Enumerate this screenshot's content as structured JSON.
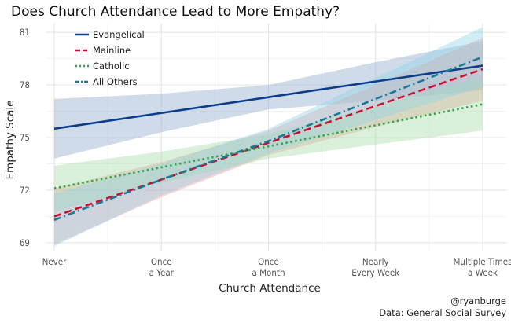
{
  "chart_data": {
    "type": "line",
    "title": "Does Church Attendance Lead to More Empathy?",
    "xlabel": "Church Attendance",
    "ylabel": "Empathy Scale",
    "categories": [
      [
        "Never"
      ],
      [
        "Once",
        "a Year"
      ],
      [
        "Once",
        "a Month"
      ],
      [
        "Nearly",
        "Every Week"
      ],
      [
        "Multiple Times",
        "a Week"
      ]
    ],
    "x": [
      0,
      1,
      2,
      3,
      4
    ],
    "ylim": [
      68.5,
      81.5
    ],
    "yticks": [
      69,
      72,
      75,
      78,
      81
    ],
    "grid": true,
    "legend_position": "top-left",
    "series": [
      {
        "name": "Evangelical",
        "color": "#0a3d8a",
        "dash": "solid",
        "values": [
          75.5,
          76.4,
          77.3,
          78.2,
          79.1
        ],
        "ci_low": [
          73.8,
          75.3,
          76.6,
          77.1,
          77.7
        ],
        "ci_high": [
          77.2,
          77.5,
          78.0,
          79.3,
          80.5
        ]
      },
      {
        "name": "Mainline",
        "color": "#c8102e",
        "dash": "longdash",
        "values": [
          70.5,
          72.6,
          74.7,
          76.8,
          78.9
        ],
        "ci_low": [
          68.9,
          71.6,
          74.0,
          75.6,
          77.1
        ],
        "ci_high": [
          72.1,
          73.6,
          75.4,
          78.0,
          80.7
        ]
      },
      {
        "name": "Catholic",
        "color": "#2ea84a",
        "dash": "dotted",
        "values": [
          72.1,
          73.3,
          74.5,
          75.7,
          76.9
        ],
        "ci_low": [
          70.8,
          72.4,
          73.8,
          74.6,
          75.4
        ],
        "ci_high": [
          73.4,
          74.2,
          75.2,
          76.8,
          78.4
        ]
      },
      {
        "name": "All Others",
        "color": "#1a7a9a",
        "dash": "dotdash",
        "values": [
          70.3,
          72.6,
          74.8,
          77.2,
          79.6
        ],
        "ci_low": [
          68.8,
          71.7,
          74.1,
          76.0,
          77.9
        ],
        "ci_high": [
          71.8,
          73.5,
          75.5,
          78.4,
          81.3
        ]
      }
    ],
    "band_colors": {
      "Evangelical": "#8fa9cc",
      "Mainline": "#f29a9a",
      "Catholic": "#a6dba6",
      "All Others": "#8fd3e8"
    },
    "caption_lines": [
      "@ryanburge",
      "Data: General Social Survey"
    ]
  }
}
